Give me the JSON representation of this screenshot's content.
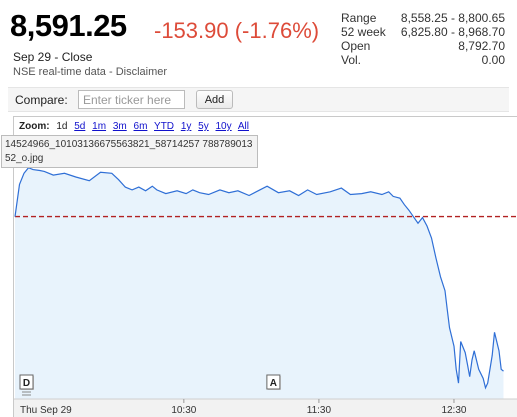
{
  "quote": {
    "price": "8,591.25",
    "change": "-153.90 (-1.76%)",
    "date_status": "Sep 29 - Close",
    "source": "NSE real-time data - Disclaimer"
  },
  "stats": [
    {
      "label": "Range",
      "value": "8,558.25 - 8,800.65"
    },
    {
      "label": "52 week",
      "value": "6,825.80 - 8,968.70"
    },
    {
      "label": "Open",
      "value": "8,792.70"
    },
    {
      "label": "Vol.",
      "value": "0.00"
    }
  ],
  "compare": {
    "label": "Compare:",
    "placeholder": "Enter ticker here",
    "add_label": "Add"
  },
  "zoom": {
    "label": "Zoom:",
    "options": [
      "1d",
      "5d",
      "1m",
      "3m",
      "6m",
      "YTD",
      "1y",
      "5y",
      "10y",
      "All"
    ],
    "active": "1d"
  },
  "tooltip": {
    "text": "14524966_10103136675563821_58714257 78878901352_o.jpg"
  },
  "chart_data": {
    "type": "line",
    "x_labels": [
      "Thu Sep 29",
      "10:30",
      "11:30",
      "12:30"
    ],
    "previous_close": 8745.15,
    "ylim": [
      8550,
      8815
    ],
    "markers": [
      {
        "label": "D",
        "icon": "news-flag-icon"
      },
      {
        "label": "A",
        "icon": "news-flag-icon"
      }
    ],
    "colors": {
      "line": "#2f6fd6",
      "fill": "#e8f3fc",
      "prev_close": "#b22222"
    },
    "series": [
      {
        "x": [
          "09:15",
          "09:17",
          "09:19",
          "09:21",
          "09:23",
          "09:26",
          "09:28",
          "09:32",
          "09:37",
          "09:42",
          "09:48",
          "09:53",
          "09:58",
          "10:01",
          "10:04",
          "10:07",
          "10:10",
          "10:13",
          "10:16",
          "10:18",
          "10:22",
          "10:27",
          "10:31",
          "10:34",
          "10:37",
          "10:41",
          "10:46",
          "10:50",
          "10:54",
          "10:59",
          "11:03",
          "11:07",
          "11:12",
          "11:17",
          "11:21",
          "11:25",
          "11:29",
          "11:35",
          "11:40",
          "11:44",
          "11:49",
          "11:53",
          "11:58",
          "12:01",
          "12:03",
          "12:06",
          "12:08",
          "12:10",
          "12:12",
          "12:14",
          "12:16",
          "12:18",
          "12:20",
          "12:22",
          "12:24",
          "12:26",
          "12:27",
          "12:28",
          "12:30",
          "12:31",
          "12:32",
          "12:33",
          "12:35",
          "12:36",
          "12:37",
          "12:38",
          "12:39",
          "12:41",
          "12:43",
          "12:44",
          "12:45",
          "12:47",
          "12:48",
          "12:50",
          "12:51",
          "12:52"
        ],
        "values": [
          8745,
          8780,
          8792,
          8798,
          8796,
          8795,
          8794,
          8790,
          8792,
          8788,
          8784,
          8793,
          8792,
          8785,
          8777,
          8774,
          8777,
          8773,
          8778,
          8774,
          8770,
          8773,
          8770,
          8774,
          8771,
          8769,
          8774,
          8771,
          8773,
          8768,
          8773,
          8778,
          8771,
          8773,
          8768,
          8774,
          8769,
          8772,
          8776,
          8769,
          8770,
          8772,
          8769,
          8772,
          8767,
          8765,
          8758,
          8752,
          8745,
          8738,
          8744,
          8735,
          8722,
          8700,
          8680,
          8665,
          8645,
          8625,
          8605,
          8580,
          8565,
          8610,
          8598,
          8585,
          8572,
          8590,
          8600,
          8580,
          8570,
          8560,
          8565,
          8595,
          8620,
          8600,
          8580,
          8578
        ]
      }
    ]
  }
}
